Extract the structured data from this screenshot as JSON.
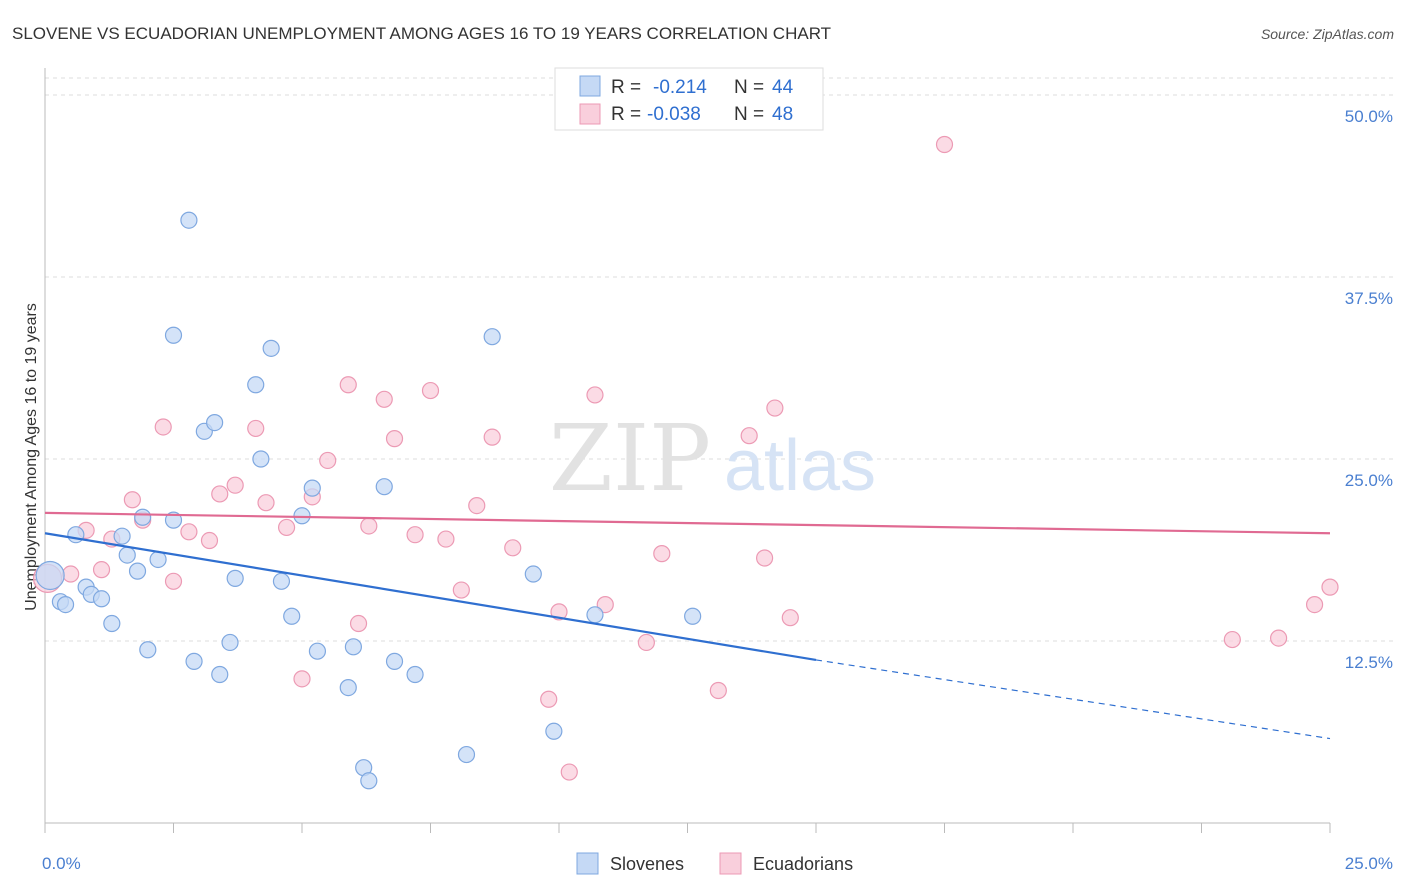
{
  "header": {
    "title": "SLOVENE VS ECUADORIAN UNEMPLOYMENT AMONG AGES 16 TO 19 YEARS CORRELATION CHART",
    "source": "Source: ZipAtlas.com"
  },
  "watermark": {
    "zip": "ZIP",
    "atlas": "atlas"
  },
  "legend": {
    "rows": [
      {
        "r_label": "R =",
        "r_value": "-0.214",
        "n_label": "N =",
        "n_value": "44"
      },
      {
        "r_label": "R =",
        "r_value": "-0.038",
        "n_label": "N =",
        "n_value": "48"
      }
    ]
  },
  "bottom_legend": {
    "items": [
      {
        "label": "Slovenes"
      },
      {
        "label": "Ecuadorians"
      }
    ]
  },
  "colors": {
    "blue_fill": "#c5d9f5",
    "blue_stroke": "#7fa8e0",
    "blue_line": "#2f6fd0",
    "pink_fill": "#f9cfdc",
    "pink_stroke": "#ec9ab4",
    "pink_line": "#e06a92",
    "grid": "#dddddd",
    "tick_text": "#4a7fd0"
  },
  "chart_data": {
    "type": "scatter",
    "title": "SLOVENE VS ECUADORIAN UNEMPLOYMENT AMONG AGES 16 TO 19 YEARS CORRELATION CHART",
    "xlabel": "",
    "ylabel": "Unemployment Among Ages 16 to 19 years",
    "xlim": [
      0,
      25
    ],
    "ylim": [
      0,
      50
    ],
    "x_tick_labels": [
      "0.0%",
      "25.0%"
    ],
    "y_ticks": [
      12.5,
      25.0,
      37.5,
      50.0
    ],
    "y_tick_labels": [
      "12.5%",
      "25.0%",
      "37.5%",
      "50.0%"
    ],
    "grid": true,
    "legend_position": "top-center",
    "series": [
      {
        "name": "Slovenes",
        "r": -0.214,
        "n": 44,
        "trend": {
          "x_start": 0,
          "y_start": 19.9,
          "x_solid_end": 15.0,
          "y_solid_end": 11.2,
          "x_end": 25.0,
          "y_end": 5.8
        },
        "points": [
          [
            0.1,
            17.0,
            14
          ],
          [
            0.3,
            15.2,
            8
          ],
          [
            0.4,
            15.0,
            8
          ],
          [
            0.6,
            19.8,
            8
          ],
          [
            0.8,
            16.2,
            8
          ],
          [
            0.9,
            15.7,
            8
          ],
          [
            1.1,
            15.4,
            8
          ],
          [
            1.3,
            13.7,
            8
          ],
          [
            1.5,
            19.7,
            8
          ],
          [
            1.6,
            18.4,
            8
          ],
          [
            1.8,
            17.3,
            8
          ],
          [
            1.9,
            21.0,
            8
          ],
          [
            2.0,
            11.9,
            8
          ],
          [
            2.2,
            18.1,
            8
          ],
          [
            2.5,
            20.8,
            8
          ],
          [
            2.5,
            33.5,
            8
          ],
          [
            2.8,
            41.4,
            8
          ],
          [
            2.9,
            11.1,
            8
          ],
          [
            3.1,
            26.9,
            8
          ],
          [
            3.3,
            27.5,
            8
          ],
          [
            3.4,
            10.2,
            8
          ],
          [
            3.6,
            12.4,
            8
          ],
          [
            3.7,
            16.8,
            8
          ],
          [
            4.1,
            30.1,
            8
          ],
          [
            4.2,
            25.0,
            8
          ],
          [
            4.4,
            32.6,
            8
          ],
          [
            4.6,
            16.6,
            8
          ],
          [
            4.8,
            14.2,
            8
          ],
          [
            5.0,
            21.1,
            8
          ],
          [
            5.2,
            23.0,
            8
          ],
          [
            5.3,
            11.8,
            8
          ],
          [
            5.9,
            9.3,
            8
          ],
          [
            6.0,
            12.1,
            8
          ],
          [
            6.2,
            3.8,
            8
          ],
          [
            6.3,
            2.9,
            8
          ],
          [
            6.6,
            23.1,
            8
          ],
          [
            6.8,
            11.1,
            8
          ],
          [
            7.2,
            10.2,
            8
          ],
          [
            8.2,
            4.7,
            8
          ],
          [
            8.7,
            33.4,
            8
          ],
          [
            9.5,
            17.1,
            8
          ],
          [
            9.9,
            6.3,
            8
          ],
          [
            10.7,
            14.3,
            8
          ],
          [
            12.6,
            14.2,
            8
          ]
        ]
      },
      {
        "name": "Ecuadorians",
        "r": -0.038,
        "n": 48,
        "trend": {
          "x_start": 0,
          "y_start": 21.3,
          "x_end": 25.0,
          "y_end": 19.9
        },
        "points": [
          [
            0.05,
            16.8,
            14
          ],
          [
            0.5,
            17.1,
            8
          ],
          [
            0.8,
            20.1,
            8
          ],
          [
            1.1,
            17.4,
            8
          ],
          [
            1.3,
            19.5,
            8
          ],
          [
            1.7,
            22.2,
            8
          ],
          [
            1.9,
            20.8,
            8
          ],
          [
            2.3,
            27.2,
            8
          ],
          [
            2.5,
            16.6,
            8
          ],
          [
            2.8,
            20.0,
            8
          ],
          [
            3.2,
            19.4,
            8
          ],
          [
            3.4,
            22.6,
            8
          ],
          [
            3.7,
            23.2,
            8
          ],
          [
            4.1,
            27.1,
            8
          ],
          [
            4.3,
            22.0,
            8
          ],
          [
            4.7,
            20.3,
            8
          ],
          [
            5.0,
            9.9,
            8
          ],
          [
            5.2,
            22.4,
            8
          ],
          [
            5.5,
            24.9,
            8
          ],
          [
            5.9,
            30.1,
            8
          ],
          [
            6.1,
            13.7,
            8
          ],
          [
            6.3,
            20.4,
            8
          ],
          [
            6.6,
            29.1,
            8
          ],
          [
            6.8,
            26.4,
            8
          ],
          [
            7.2,
            19.8,
            8
          ],
          [
            7.5,
            29.7,
            8
          ],
          [
            7.8,
            19.5,
            8
          ],
          [
            8.1,
            16.0,
            8
          ],
          [
            8.4,
            21.8,
            8
          ],
          [
            8.7,
            26.5,
            8
          ],
          [
            9.1,
            18.9,
            8
          ],
          [
            9.8,
            8.5,
            8
          ],
          [
            10.0,
            14.5,
            8
          ],
          [
            10.2,
            3.5,
            8
          ],
          [
            10.7,
            29.4,
            8
          ],
          [
            10.9,
            15.0,
            8
          ],
          [
            11.7,
            12.4,
            8
          ],
          [
            12.0,
            18.5,
            8
          ],
          [
            13.1,
            9.1,
            8
          ],
          [
            13.7,
            26.6,
            8
          ],
          [
            14.0,
            18.2,
            8
          ],
          [
            14.2,
            28.5,
            8
          ],
          [
            14.5,
            14.1,
            8
          ],
          [
            17.5,
            46.6,
            8
          ],
          [
            23.1,
            12.6,
            8
          ],
          [
            24.0,
            12.7,
            8
          ],
          [
            24.7,
            15.0,
            8
          ],
          [
            25.0,
            16.2,
            8
          ]
        ]
      }
    ]
  }
}
